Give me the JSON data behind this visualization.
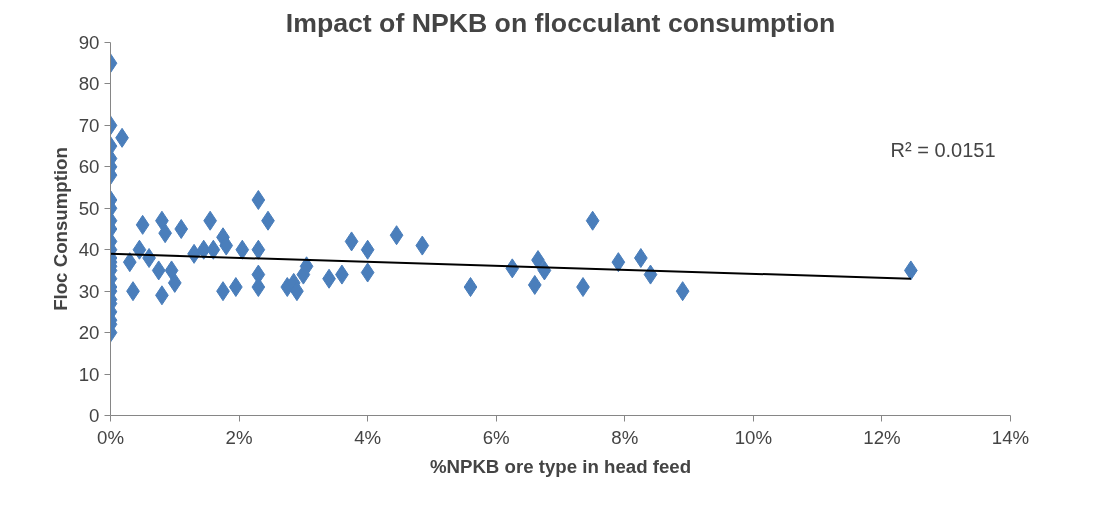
{
  "chart_data": {
    "type": "scatter",
    "title": "Impact of NPKB on flocculant consumption",
    "xlabel": "%NPKB ore type in head feed",
    "ylabel": "Floc Consumption",
    "xlim": [
      0,
      14
    ],
    "ylim": [
      0,
      90
    ],
    "xticks": [
      {
        "value": 0,
        "label": "0%"
      },
      {
        "value": 2,
        "label": "2%"
      },
      {
        "value": 4,
        "label": "4%"
      },
      {
        "value": 6,
        "label": "6%"
      },
      {
        "value": 8,
        "label": "8%"
      },
      {
        "value": 10,
        "label": "10%"
      },
      {
        "value": 12,
        "label": "12%"
      },
      {
        "value": 14,
        "label": "14%"
      }
    ],
    "yticks": [
      0,
      10,
      20,
      30,
      40,
      50,
      60,
      70,
      80,
      90
    ],
    "grid": false,
    "marker": "diamond",
    "annotations": [
      "R² = 0.0151"
    ],
    "series": [
      {
        "color": "#4a7ebb",
        "x": [
          0,
          0,
          0,
          0,
          0,
          0,
          0,
          0,
          0,
          0,
          0,
          0,
          0,
          0,
          0,
          0,
          0,
          0,
          0,
          0,
          0,
          0,
          0,
          0,
          0,
          0.18,
          0.3,
          0.35,
          0.45,
          0.5,
          0.6,
          0.75,
          0.8,
          0.85,
          0.8,
          0.95,
          1.0,
          1.1,
          1.3,
          1.45,
          1.55,
          1.6,
          1.75,
          1.8,
          1.75,
          1.95,
          2.05,
          2.3,
          2.3,
          2.3,
          2.3,
          2.45,
          2.75,
          2.85,
          2.9,
          3.0,
          3.05,
          3.4,
          3.6,
          3.75,
          4.0,
          4.0,
          4.45,
          4.85,
          5.6,
          6.25,
          6.6,
          6.65,
          6.75,
          7.35,
          7.5,
          7.9,
          8.25,
          8.4,
          8.9,
          12.45
        ],
        "values": [
          85,
          70,
          65,
          62,
          60,
          58,
          52,
          50,
          47,
          45,
          42,
          40,
          38,
          37,
          35,
          33,
          31,
          30,
          28,
          27,
          25,
          23,
          22,
          20,
          36,
          67,
          37,
          30,
          40,
          46,
          38,
          35,
          47,
          44,
          29,
          35,
          32,
          45,
          39,
          40,
          47,
          40,
          43,
          41,
          30,
          31,
          40,
          52,
          40,
          34,
          31,
          47,
          31,
          32,
          30,
          34,
          36,
          33,
          34,
          42,
          40,
          34.5,
          43.5,
          41,
          31,
          35.5,
          31.5,
          37.5,
          35,
          31,
          47,
          37,
          38,
          34,
          30,
          35
        ]
      },
      {
        "type": "line",
        "color": "#000000",
        "marker": "none",
        "x": [
          0,
          12.45
        ],
        "values": [
          39,
          33
        ]
      }
    ]
  }
}
